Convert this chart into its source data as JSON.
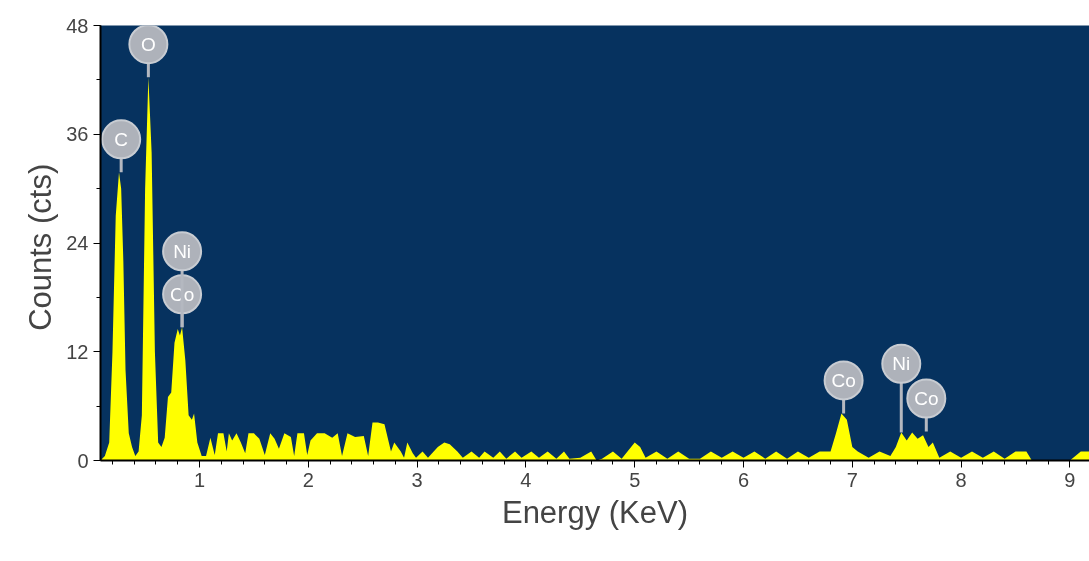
{
  "chart_data": {
    "type": "area",
    "xlabel": "Energy (KeV)",
    "ylabel": "Counts  (cts)",
    "color": "#ffff00",
    "xlim": [
      0.09,
      9.18
    ],
    "ylim": [
      0,
      48
    ],
    "xticks": [
      1,
      2,
      3,
      4,
      5,
      6,
      7,
      8,
      9
    ],
    "yticks": [
      0,
      12,
      24,
      36,
      48
    ],
    "grid": false,
    "x": [
      0.09,
      0.13,
      0.17,
      0.2,
      0.23,
      0.26,
      0.28,
      0.3,
      0.32,
      0.35,
      0.38,
      0.41,
      0.44,
      0.47,
      0.5,
      0.53,
      0.56,
      0.59,
      0.62,
      0.65,
      0.68,
      0.71,
      0.74,
      0.77,
      0.8,
      0.82,
      0.84,
      0.87,
      0.9,
      0.93,
      0.95,
      0.98,
      1.02,
      1.06,
      1.1,
      1.14,
      1.17,
      1.22,
      1.25,
      1.27,
      1.3,
      1.34,
      1.38,
      1.42,
      1.45,
      1.5,
      1.55,
      1.6,
      1.65,
      1.69,
      1.73,
      1.78,
      1.84,
      1.87,
      1.9,
      1.96,
      1.99,
      2.02,
      2.08,
      2.15,
      2.22,
      2.27,
      2.31,
      2.36,
      2.43,
      2.51,
      2.55,
      2.59,
      2.64,
      2.7,
      2.76,
      2.79,
      2.85,
      2.88,
      2.91,
      2.96,
      2.99,
      3.05,
      3.1,
      3.19,
      3.25,
      3.3,
      3.37,
      3.42,
      3.5,
      3.57,
      3.62,
      3.7,
      3.76,
      3.82,
      3.9,
      3.96,
      4.05,
      4.12,
      4.2,
      4.28,
      4.35,
      4.4,
      4.5,
      4.6,
      4.65,
      4.7,
      4.8,
      4.88,
      5.0,
      5.05,
      5.1,
      5.2,
      5.3,
      5.4,
      5.5,
      5.6,
      5.7,
      5.8,
      5.9,
      6.0,
      6.1,
      6.2,
      6.3,
      6.4,
      6.5,
      6.6,
      6.7,
      6.8,
      6.85,
      6.9,
      6.95,
      7.0,
      7.05,
      7.15,
      7.25,
      7.35,
      7.4,
      7.45,
      7.5,
      7.55,
      7.6,
      7.65,
      7.7,
      7.74,
      7.8,
      7.9,
      8.0,
      8.1,
      8.2,
      8.3,
      8.4,
      8.5,
      8.6,
      8.65,
      8.8,
      9.0,
      9.1,
      9.18
    ],
    "values": [
      0,
      0.5,
      2,
      12,
      27,
      31.8,
      30,
      22,
      10,
      3,
      1.5,
      0.5,
      1,
      5,
      30,
      42.3,
      34,
      12,
      2,
      1.5,
      2.5,
      7,
      7.5,
      13,
      14.5,
      13.8,
      14.7,
      11,
      5,
      4.5,
      5.2,
      2,
      0.5,
      0.5,
      2.5,
      0.6,
      3,
      3,
      1,
      3,
      2.2,
      3,
      2,
      0.8,
      3,
      3,
      2.4,
      0.6,
      3,
      2.4,
      1.3,
      3,
      2.6,
      0.5,
      3,
      3,
      0.6,
      2.2,
      3,
      3,
      2.5,
      3,
      0.5,
      3,
      2.6,
      2.7,
      0.5,
      4.2,
      4.2,
      4,
      1,
      2,
      1,
      0.3,
      2,
      0.8,
      0.3,
      1,
      0.3,
      1.5,
      2,
      1.8,
      1,
      0.3,
      1,
      0.3,
      1,
      0.3,
      1,
      0.2,
      1,
      0.3,
      1,
      0.3,
      1,
      0.2,
      1,
      0.2,
      0.3,
      1,
      0,
      0.2,
      1,
      0.2,
      2,
      1.5,
      0.3,
      1,
      0.2,
      1,
      0.2,
      0.2,
      1,
      0.3,
      1,
      0.3,
      1,
      0.2,
      1,
      0.2,
      1,
      0.3,
      1,
      1,
      3,
      5.2,
      4.5,
      1.5,
      1,
      0.3,
      1,
      0.5,
      1.5,
      3.1,
      2.2,
      3.1,
      2.4,
      2.8,
      1.5,
      2,
      0.3,
      1,
      0.3,
      1,
      0.3,
      1,
      0.2,
      1,
      1,
      0,
      0,
      0,
      1,
      1
    ],
    "annotations": [
      {
        "text": "C",
        "x": 0.28,
        "y": 31.8
      },
      {
        "text": "O",
        "x": 0.53,
        "y": 42.3
      },
      {
        "text": "Co",
        "x": 0.84,
        "y": 14.7
      },
      {
        "text": "Ni",
        "x": 0.84,
        "y": 14.7
      },
      {
        "text": "Co",
        "x": 6.92,
        "y": 5.2
      },
      {
        "text": "Co",
        "x": 7.68,
        "y": 3.2
      },
      {
        "text": "Ni",
        "x": 7.45,
        "y": 3.1
      }
    ]
  }
}
